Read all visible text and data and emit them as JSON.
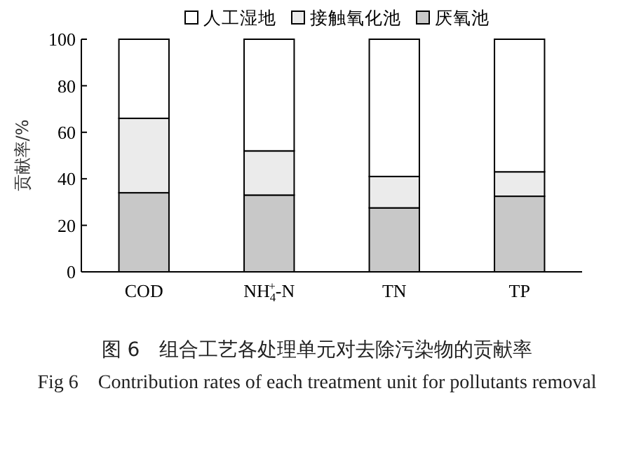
{
  "chart_data": {
    "type": "bar",
    "stacked": true,
    "ylabel": "贡献率/%",
    "categories": [
      "COD",
      "NH$_{4}$$^{+}$-N",
      "TN",
      "TP"
    ],
    "series": [
      {
        "name": "厌氧池",
        "color": "#c8c8c8",
        "values": [
          34,
          33,
          27.5,
          32.5
        ]
      },
      {
        "name": "接触氧化池",
        "color": "#ebebeb",
        "values": [
          32,
          19,
          13.5,
          10.5
        ]
      },
      {
        "name": "人工湿地",
        "color": "#ffffff",
        "values": [
          34,
          48,
          59,
          57
        ]
      }
    ],
    "ylim": [
      0,
      100
    ],
    "yticks": [
      0,
      20,
      40,
      60,
      80,
      100
    ],
    "grid": false,
    "legend": "top",
    "annotations": [
      "图 6　组合工艺各处理单元对去除污染物的贡献率",
      "Fig 6　Contribution rates of each treatment unit for pollutants removal"
    ]
  }
}
